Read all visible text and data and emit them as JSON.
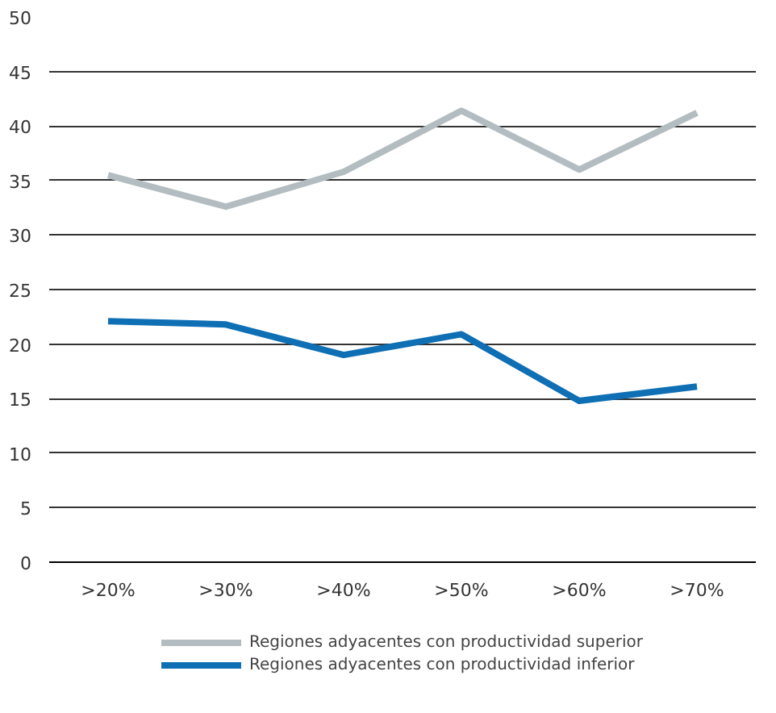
{
  "chart_data": {
    "type": "line",
    "categories": [
      ">20%",
      ">30%",
      ">40%",
      ">50%",
      ">60%",
      ">70%"
    ],
    "series": [
      {
        "name": "Regiones adyacentes con productividad superior",
        "color": "#b3bdc1",
        "values": [
          35.5,
          32.6,
          35.8,
          41.4,
          36.0,
          41.2
        ]
      },
      {
        "name": "Regiones adyacentes con productividad inferior",
        "color": "#0f6fb5",
        "values": [
          22.1,
          21.8,
          19.0,
          20.9,
          14.8,
          16.1
        ]
      }
    ],
    "ylim": [
      0,
      50
    ],
    "yticks": [
      0,
      5,
      10,
      15,
      20,
      25,
      30,
      35,
      40,
      45,
      50
    ],
    "grid": "y",
    "legend": "bottom",
    "marker": "none",
    "line_style": "solid"
  }
}
